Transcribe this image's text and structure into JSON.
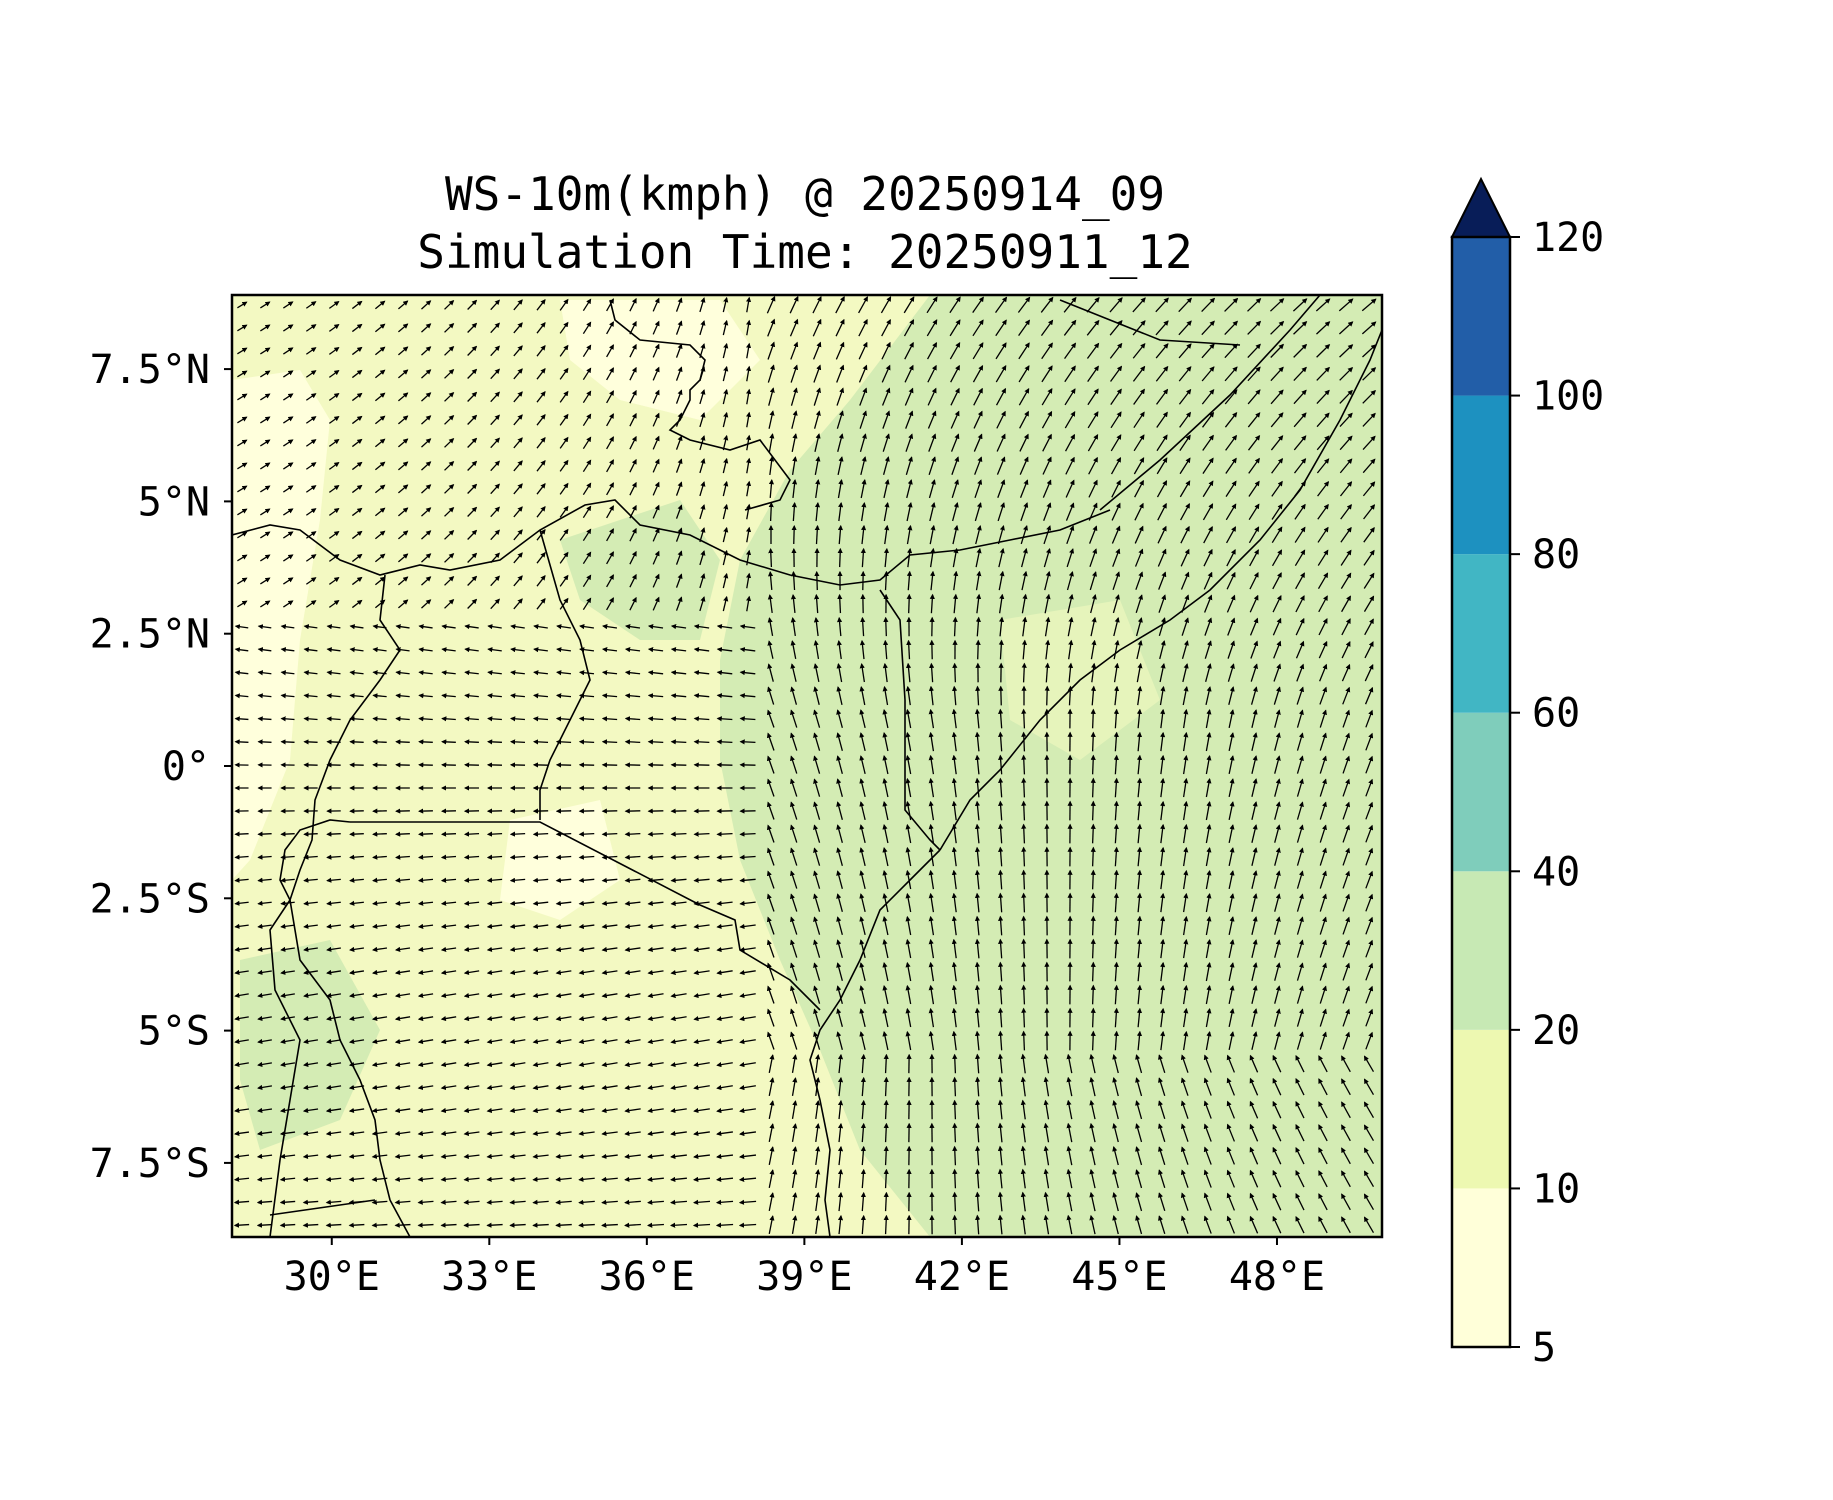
{
  "title": {
    "line1": "WS-10m(kmph) @ 20250914_09",
    "line2": "Simulation Time: 20250911_12"
  },
  "map": {
    "lon_range": [
      28.1,
      50.0
    ],
    "lat_range": [
      -8.9,
      8.9
    ],
    "x_ticks": [
      {
        "value": 30,
        "label": "30°E"
      },
      {
        "value": 33,
        "label": "33°E"
      },
      {
        "value": 36,
        "label": "36°E"
      },
      {
        "value": 39,
        "label": "39°E"
      },
      {
        "value": 42,
        "label": "42°E"
      },
      {
        "value": 45,
        "label": "45°E"
      },
      {
        "value": 48,
        "label": "48°E"
      }
    ],
    "y_ticks": [
      {
        "value": 7.5,
        "label": "7.5°N"
      },
      {
        "value": 5,
        "label": "5°N"
      },
      {
        "value": 2.5,
        "label": "2.5°N"
      },
      {
        "value": 0,
        "label": "0°"
      },
      {
        "value": -2.5,
        "label": "2.5°S"
      },
      {
        "value": -5,
        "label": "5°S"
      },
      {
        "value": -7.5,
        "label": "7.5°S"
      }
    ],
    "field_colors": {
      "lowest": "#ffffd9",
      "low": "#f2f9c0",
      "mid": "#d4ecb4"
    }
  },
  "colorbar": {
    "levels": [
      5,
      10,
      20,
      40,
      60,
      80,
      100,
      120
    ],
    "colors": [
      "#ffffd9",
      "#edf8b1",
      "#c7e9b4",
      "#7fcdbb",
      "#41b6c4",
      "#1d91c0",
      "#225ea8",
      "#253494"
    ],
    "extend_color": "#081d58"
  }
}
